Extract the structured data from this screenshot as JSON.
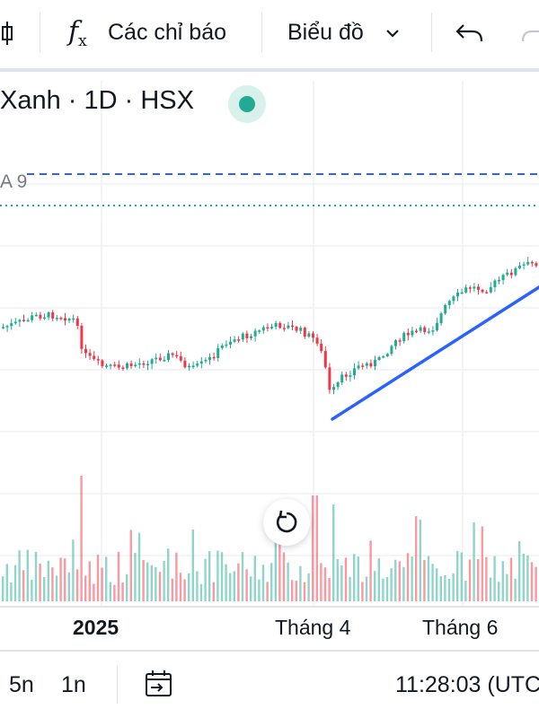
{
  "toolbar": {
    "indicators_label": "Các chỉ báo",
    "chart_type_label": "Biểu đồ",
    "icons": [
      "candlestick-icon",
      "function-icon",
      "chevron-down-icon",
      "undo-icon",
      "redo-icon"
    ]
  },
  "legend": {
    "symbol_text": "Xanh · 1D · HSX",
    "status_color": "#22ab94"
  },
  "indicator": {
    "ma_label": "A 9",
    "ma_line_color": "#2962ff",
    "ma_line2_color": "#22ab94"
  },
  "chart_data": {
    "type": "candlestick",
    "xaxis_ticks": [
      "2025",
      "Tháng 4",
      "Tháng 6"
    ],
    "up_color": "#22ab94",
    "down_color": "#f23645",
    "trendline_color": "#2962ff",
    "price_scale_visible": false,
    "volume_pane": true,
    "grid": true
  },
  "bottombar": {
    "range_5y": "5n",
    "range_1y": "1n",
    "time": "11:28:03 (UTC"
  }
}
